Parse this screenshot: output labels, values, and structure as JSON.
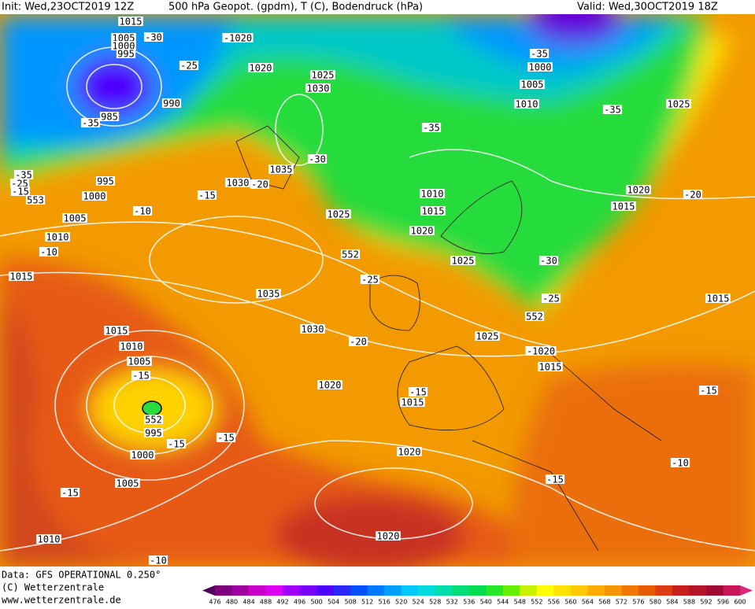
{
  "header": {
    "init": "Init: Wed,23OCT2019 12Z",
    "product": "500 hPa Geopot. (gpdm), T (C), Bodendruck (hPa)",
    "valid": "Valid: Wed,30OCT2019 18Z"
  },
  "map_labels": [
    "1015",
    "1005",
    "1000",
    "995",
    "-30",
    "-1020",
    "1020",
    "1025",
    "1030",
    "-25",
    "990",
    "985",
    "-35",
    "-35",
    "1000",
    "1005",
    "1010",
    "-35",
    "1025",
    "-35",
    "-30",
    "1035",
    "1030",
    "-20",
    "-15",
    "995",
    "-35",
    "-25",
    "-15",
    "1000",
    "553",
    "-10",
    "1005",
    "1010",
    "-10",
    "1015",
    "1010",
    "1015",
    "1020",
    "1025",
    "552",
    "1025",
    "-30",
    "-25",
    "1020",
    "-20",
    "1015",
    "1035",
    "1015",
    "-25",
    "552",
    "1030",
    "1015",
    "1010",
    "-20",
    "1025",
    "-1020",
    "1015",
    "1005",
    "-15",
    "1020",
    "-15",
    "-15",
    "1015",
    "552",
    "995",
    "-15",
    "-15",
    "1000",
    "1020",
    "-10",
    "-15",
    "1005",
    "-15",
    "1010",
    "1020",
    "-10"
  ],
  "footer": {
    "data": "Data: GFS OPERATIONAL 0.250°",
    "copyright": "(C) Wetterzentrale",
    "url": "www.wetterzentrale.de"
  },
  "colorbar": {
    "labels": [
      476,
      480,
      484,
      488,
      492,
      496,
      500,
      504,
      508,
      512,
      516,
      520,
      524,
      528,
      532,
      536,
      540,
      544,
      548,
      552,
      556,
      560,
      564,
      568,
      572,
      576,
      580,
      584,
      588,
      592,
      596,
      600
    ],
    "colors": [
      "#50005a",
      "#7d007d",
      "#a000a0",
      "#c800c8",
      "#dc00f0",
      "#a000ff",
      "#7800ff",
      "#5000ff",
      "#2828ff",
      "#0050ff",
      "#0078ff",
      "#00a0ff",
      "#00c8ff",
      "#00dcdc",
      "#00dcaa",
      "#00dc78",
      "#00dc50",
      "#28e628",
      "#64f000",
      "#c8f000",
      "#ffff00",
      "#ffe100",
      "#ffc800",
      "#ffaa00",
      "#f59600",
      "#f07800",
      "#e65a00",
      "#dc3c14",
      "#c81e1e",
      "#b41428",
      "#a00a32",
      "#c8145a",
      "#dc2878"
    ]
  }
}
